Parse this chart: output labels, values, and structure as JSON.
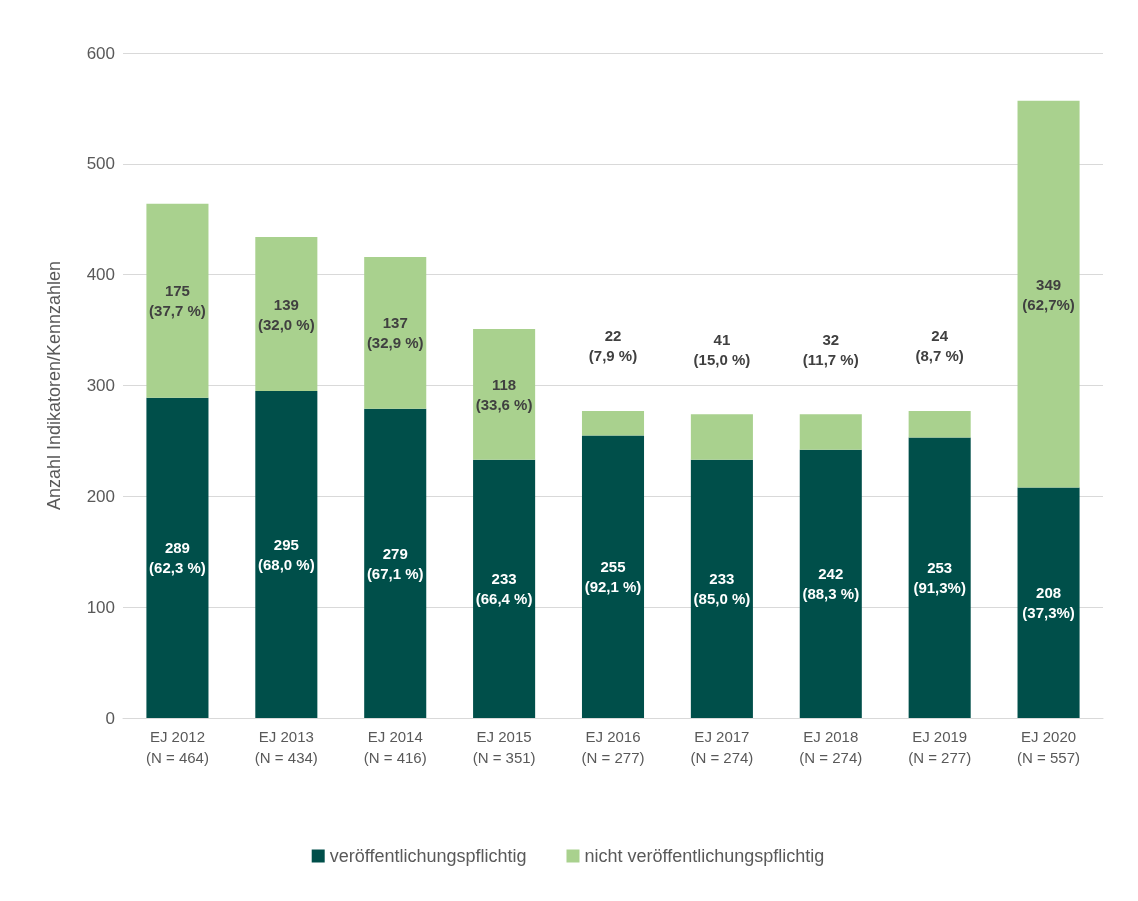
{
  "chart_data": {
    "type": "bar",
    "stacked": true,
    "ylabel": "Anzahl Indikatoren/Kennzahlen",
    "categories": [
      "EJ 2012\n(N = 464)",
      "EJ 2013\n(N = 434)",
      "EJ 2014\n(N = 416)",
      "EJ 2015\n(N = 351)",
      "EJ 2016\n(N = 277)",
      "EJ 2017\n(N = 274)",
      "EJ 2018\n(N = 274)",
      "EJ 2019\n(N = 277)",
      "EJ 2020\n(N = 557)"
    ],
    "series": [
      {
        "name": "veröffentlichungspflichtig",
        "color": "#004f4a",
        "values": [
          289,
          295,
          279,
          233,
          255,
          233,
          242,
          253,
          208
        ],
        "value_labels": [
          "289\n(62,3 %)",
          "295\n(68,0 %)",
          "279\n(67,1 %)",
          "233\n(66,4 %)",
          "255\n(92,1 %)",
          "233\n(85,0 %)",
          "242\n(88,3 %)",
          "253\n(91,3%)",
          "208\n(37,3%)"
        ]
      },
      {
        "name": "nicht veröffentlichungspflichtig",
        "color": "#a9d18e",
        "values": [
          175,
          139,
          137,
          118,
          22,
          41,
          32,
          24,
          349
        ],
        "value_labels": [
          "175\n(37,7 %)",
          "139\n(32,0 %)",
          "137\n(32,9 %)",
          "118\n(33,6 %)",
          "22\n(7,9 %)",
          "41\n(15,0 %)",
          "32\n(11,7 %)",
          "24\n(8,7 %)",
          "349\n(62,7%)"
        ]
      }
    ],
    "ylim": [
      0,
      600
    ],
    "yticks": [
      0,
      100,
      200,
      300,
      400,
      500,
      600
    ],
    "grid": "y",
    "legend": "bottom"
  }
}
